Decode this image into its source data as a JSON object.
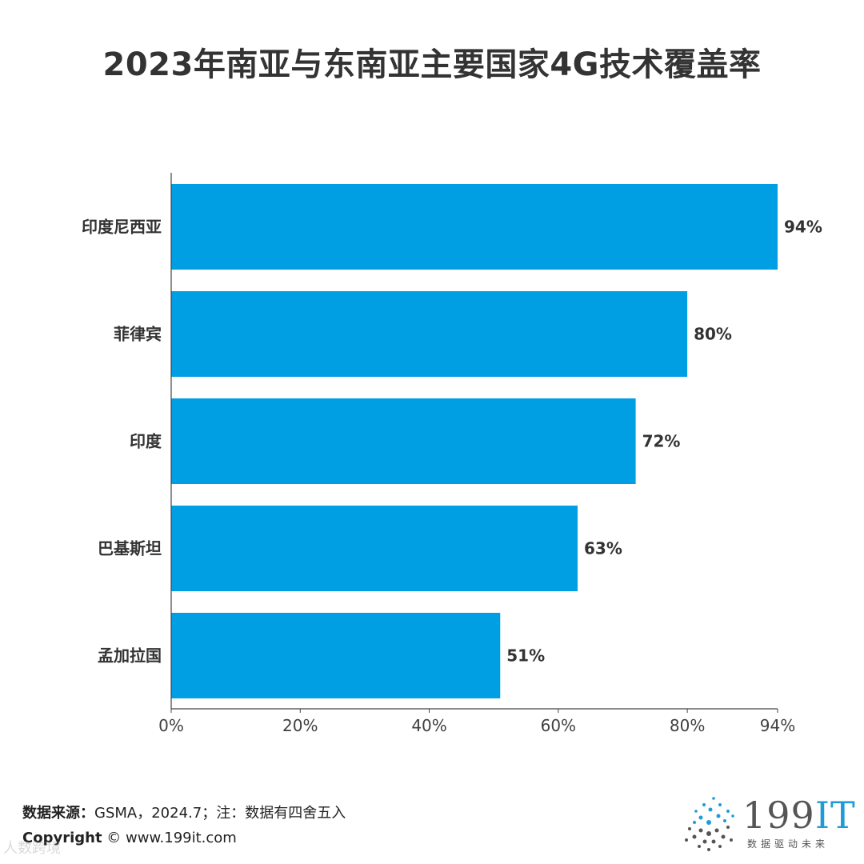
{
  "chart_data": {
    "type": "bar",
    "orientation": "horizontal",
    "title": "2023年南亚与东南亚主要国家4G技术覆盖率",
    "categories": [
      "印度尼西亚",
      "菲律宾",
      "印度",
      "巴基斯坦",
      "孟加拉国"
    ],
    "values": [
      94,
      80,
      72,
      63,
      51
    ],
    "value_labels": [
      "94%",
      "80%",
      "72%",
      "63%",
      "51%"
    ],
    "xlim": [
      0,
      94
    ],
    "x_ticks": [
      0,
      20,
      40,
      60,
      80,
      94
    ],
    "x_tick_labels": [
      "0%",
      "20%",
      "40%",
      "60%",
      "80%",
      "94%"
    ],
    "grid": false,
    "legend": "none",
    "bar_color": "#009fe3"
  },
  "footer": {
    "source_label": "数据来源：",
    "source_text": "GSMA，2024.7；注：数据有四舍五入",
    "copyright_label": "Copyright",
    "copyright_text": "© www.199it.com",
    "watermark": "人数跨境"
  },
  "logo": {
    "brand_number": "199",
    "brand_it": "IT",
    "tagline": "数据驱动未来",
    "accent_color": "#1f9bd7"
  }
}
